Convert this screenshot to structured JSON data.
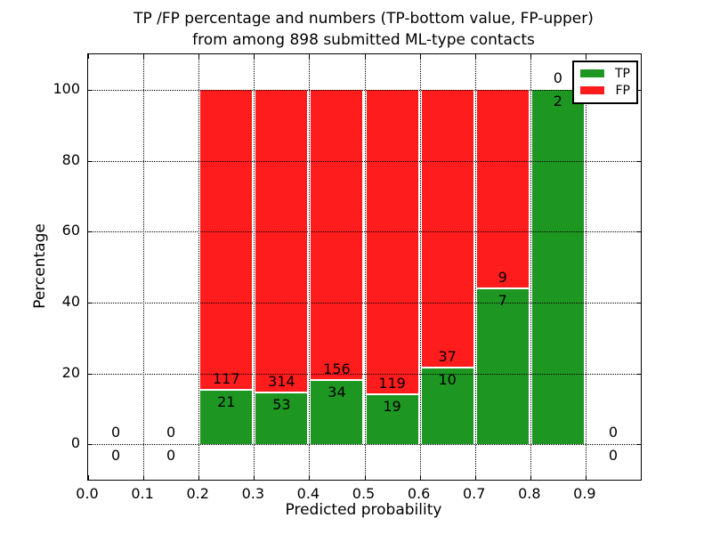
{
  "chart_data": {
    "type": "bar",
    "stacked": true,
    "percent_normalized": true,
    "title_line1": "TP /FP percentage and numbers (TP-bottom value, FP-upper)",
    "title_line2": "from among 898 submitted ML-type contacts",
    "xlabel": "Predicted probability",
    "ylabel": "Percentage",
    "xlim": [
      0.0,
      1.0
    ],
    "ylim": [
      -10,
      110
    ],
    "grid_style": "dotted",
    "x_ticks": [
      {
        "value": 0.0,
        "label": "0.0"
      },
      {
        "value": 0.1,
        "label": "0.1"
      },
      {
        "value": 0.2,
        "label": "0.2"
      },
      {
        "value": 0.3,
        "label": "0.3"
      },
      {
        "value": 0.4,
        "label": "0.4"
      },
      {
        "value": 0.5,
        "label": "0.5"
      },
      {
        "value": 0.6,
        "label": "0.6"
      },
      {
        "value": 0.7,
        "label": "0.7"
      },
      {
        "value": 0.8,
        "label": "0.8"
      },
      {
        "value": 0.9,
        "label": "0.9"
      }
    ],
    "y_ticks": [
      {
        "value": 0,
        "label": "0"
      },
      {
        "value": 20,
        "label": "20"
      },
      {
        "value": 40,
        "label": "40"
      },
      {
        "value": 60,
        "label": "60"
      },
      {
        "value": 80,
        "label": "80"
      },
      {
        "value": 100,
        "label": "100"
      }
    ],
    "legend": {
      "position": "upper right",
      "entries": [
        {
          "label": "TP",
          "color_key": "tp"
        },
        {
          "label": "FP",
          "color_key": "fp"
        }
      ]
    },
    "colors": {
      "tp": "#1e9622",
      "fp": "#ff1c1c",
      "grid": "#000000",
      "background": "#ffffff"
    },
    "bins": [
      {
        "x_start": 0.0,
        "x_end": 0.1,
        "tp": 0,
        "fp": 0
      },
      {
        "x_start": 0.1,
        "x_end": 0.2,
        "tp": 0,
        "fp": 0
      },
      {
        "x_start": 0.2,
        "x_end": 0.3,
        "tp": 21,
        "fp": 117
      },
      {
        "x_start": 0.3,
        "x_end": 0.4,
        "tp": 53,
        "fp": 314
      },
      {
        "x_start": 0.4,
        "x_end": 0.5,
        "tp": 34,
        "fp": 156
      },
      {
        "x_start": 0.5,
        "x_end": 0.6,
        "tp": 19,
        "fp": 119
      },
      {
        "x_start": 0.6,
        "x_end": 0.7,
        "tp": 10,
        "fp": 37
      },
      {
        "x_start": 0.7,
        "x_end": 0.8,
        "tp": 7,
        "fp": 9
      },
      {
        "x_start": 0.8,
        "x_end": 0.9,
        "tp": 2,
        "fp": 0
      },
      {
        "x_start": 0.9,
        "x_end": 1.0,
        "tp": 0,
        "fp": 0
      }
    ]
  }
}
